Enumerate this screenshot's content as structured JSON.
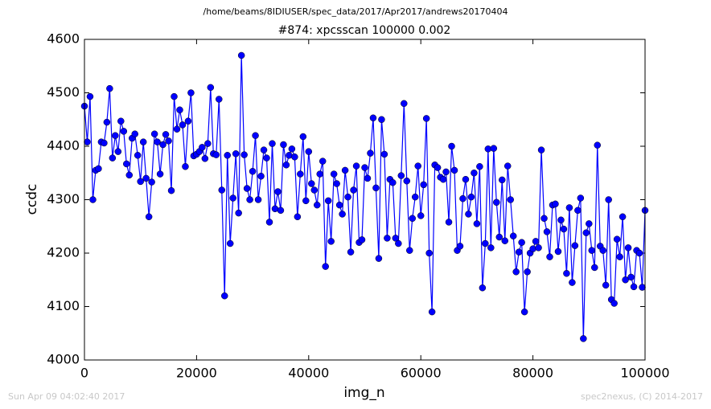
{
  "chart_data": {
    "type": "line",
    "suptitle": "/home/beams/8IDIUSER/spec_data/2017/Apr2017/andrews20170404",
    "title": "#874: xpcsscan 100000 0.002",
    "xlabel": "img_n",
    "ylabel": "ccdc",
    "footer_left": "Sun Apr 09 04:02:40 2017",
    "footer_right": "spec2nexus, (C) 2014-2017",
    "xlim": [
      0,
      100000
    ],
    "xticks": [
      0,
      20000,
      40000,
      60000,
      80000,
      100000
    ],
    "ylim": [
      4000,
      4600
    ],
    "yticks": [
      4000,
      4100,
      4200,
      4300,
      4400,
      4500,
      4600
    ],
    "x": [
      0,
      500,
      1000,
      1500,
      2000,
      2500,
      3000,
      3500,
      4000,
      4500,
      5000,
      5500,
      6000,
      6500,
      7000,
      7500,
      8000,
      8500,
      9000,
      9500,
      10000,
      10500,
      11000,
      11500,
      12000,
      12500,
      13000,
      13500,
      14000,
      14500,
      15000,
      15500,
      16000,
      16500,
      17000,
      17500,
      18000,
      18500,
      19000,
      19500,
      20000,
      20500,
      21000,
      21500,
      22000,
      22500,
      23000,
      23500,
      24000,
      24500,
      25000,
      25500,
      26000,
      26500,
      27000,
      27500,
      28000,
      28500,
      29000,
      29500,
      30000,
      30500,
      31000,
      31500,
      32000,
      32500,
      33000,
      33500,
      34000,
      34500,
      35000,
      35500,
      36000,
      36500,
      37000,
      37500,
      38000,
      38500,
      39000,
      39500,
      40000,
      40500,
      41000,
      41500,
      42000,
      42500,
      43000,
      43500,
      44000,
      44500,
      45000,
      45500,
      46000,
      46500,
      47000,
      47500,
      48000,
      48500,
      49000,
      49500,
      50000,
      50500,
      51000,
      51500,
      52000,
      52500,
      53000,
      53500,
      54000,
      54500,
      55000,
      55500,
      56000,
      56500,
      57000,
      57500,
      58000,
      58500,
      59000,
      59500,
      60000,
      60500,
      61000,
      61500,
      62000,
      62500,
      63000,
      63500,
      64000,
      64500,
      65000,
      65500,
      66000,
      66500,
      67000,
      67500,
      68000,
      68500,
      69000,
      69500,
      70000,
      70500,
      71000,
      71500,
      72000,
      72500,
      73000,
      73500,
      74000,
      74500,
      75000,
      75500,
      76000,
      76500,
      77000,
      77500,
      78000,
      78500,
      79000,
      79500,
      80000,
      80500,
      81000,
      81500,
      82000,
      82500,
      83000,
      83500,
      84000,
      84500,
      85000,
      85500,
      86000,
      86500,
      87000,
      87500,
      88000,
      88500,
      89000,
      89500,
      90000,
      90500,
      91000,
      91500,
      92000,
      92500,
      93000,
      93500,
      94000,
      94500,
      95000,
      95500,
      96000,
      96500,
      97000,
      97500,
      98000,
      98500,
      99000,
      99500,
      100000
    ],
    "series": [
      {
        "name": "ccdc",
        "color": "#0000ff",
        "values": [
          4475,
          4408,
          4493,
          4300,
          4355,
          4358,
          4408,
          4406,
          4445,
          4508,
          4378,
          4420,
          4390,
          4447,
          4428,
          4367,
          4346,
          4415,
          4423,
          4383,
          4334,
          4408,
          4340,
          4268,
          4333,
          4423,
          4408,
          4348,
          4403,
          4422,
          4410,
          4317,
          4493,
          4432,
          4468,
          4440,
          4362,
          4447,
          4500,
          4382,
          4385,
          4390,
          4398,
          4377,
          4405,
          4510,
          4386,
          4384,
          4488,
          4318,
          4120,
          4383,
          4218,
          4303,
          4386,
          4275,
          4570,
          4384,
          4321,
          4300,
          4353,
          4420,
          4300,
          4344,
          4393,
          4378,
          4258,
          4405,
          4283,
          4315,
          4280,
          4403,
          4365,
          4383,
          4395,
          4380,
          4268,
          4348,
          4418,
          4298,
          4390,
          4330,
          4318,
          4290,
          4348,
          4372,
          4175,
          4298,
          4222,
          4348,
          4330,
          4290,
          4273,
          4355,
          4305,
          4202,
          4318,
          4363,
          4220,
          4225,
          4360,
          4340,
          4387,
          4453,
          4322,
          4190,
          4450,
          4385,
          4228,
          4338,
          4332,
          4228,
          4218,
          4345,
          4480,
          4335,
          4205,
          4265,
          4305,
          4363,
          4270,
          4328,
          4452,
          4200,
          4090,
          4365,
          4360,
          4342,
          4338,
          4352,
          4258,
          4400,
          4355,
          4205,
          4213,
          4302,
          4338,
          4273,
          4305,
          4350,
          4255,
          4362,
          4135,
          4218,
          4395,
          4210,
          4396,
          4295,
          4230,
          4337,
          4223,
          4363,
          4300,
          4232,
          4165,
          4202,
          4220,
          4090,
          4165,
          4200,
          4208,
          4222,
          4210,
          4393,
          4265,
          4240,
          4193,
          4290,
          4292,
          4203,
          4262,
          4245,
          4162,
          4285,
          4145,
          4214,
          4280,
          4303,
          4040,
          4238,
          4255,
          4205,
          4173,
          4402,
          4213,
          4205,
          4140,
          4300,
          4113,
          4106,
          4226,
          4193,
          4268,
          4150,
          4210,
          4155,
          4137,
          4205,
          4200,
          4136,
          4280
        ]
      }
    ]
  }
}
